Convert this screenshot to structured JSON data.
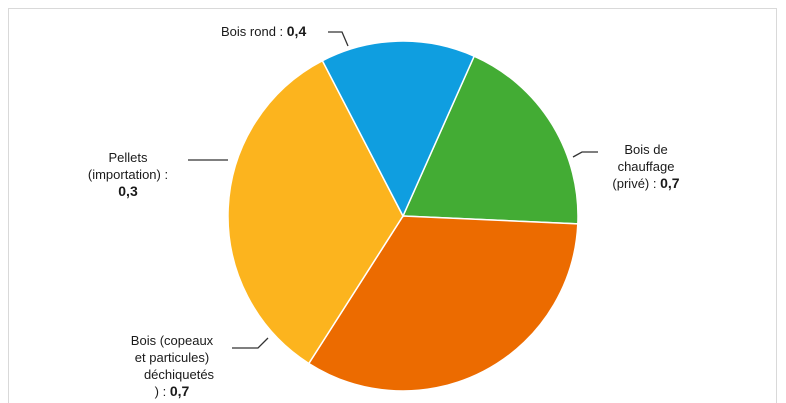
{
  "chart_data": {
    "type": "pie",
    "title": "",
    "start_angle_deg": -66,
    "slices": [
      {
        "name": "Bois rond",
        "value": 0.4,
        "value_label": "0,4",
        "color": "#43ac34"
      },
      {
        "name": "Bois de chauffage (privé)",
        "value": 0.7,
        "value_label": "0,7",
        "color": "#ec6b00"
      },
      {
        "name": "Bois (copeaux et particules) déchiquetés",
        "value": 0.7,
        "value_label": "0,7",
        "color": "#fcb41e"
      },
      {
        "name": "Pellets (importation)",
        "value": 0.3,
        "value_label": "0,3",
        "color": "#0f9ee0"
      }
    ]
  },
  "labels": {
    "bois_rond": {
      "text": "Bois rond : ",
      "value": "0,4"
    },
    "bois_chauffage": {
      "line1": "Bois de",
      "line2": "chauffage",
      "line3": "(privé) : ",
      "value": "0,7"
    },
    "pellets": {
      "line1": "Pellets",
      "line2": "(importation) :",
      "value": "0,3"
    },
    "copeaux": {
      "line1": "Bois (copeaux",
      "line2": "et particules)",
      "line3": "déchiquetés",
      "line4": ") : ",
      "value": "0,7"
    }
  }
}
